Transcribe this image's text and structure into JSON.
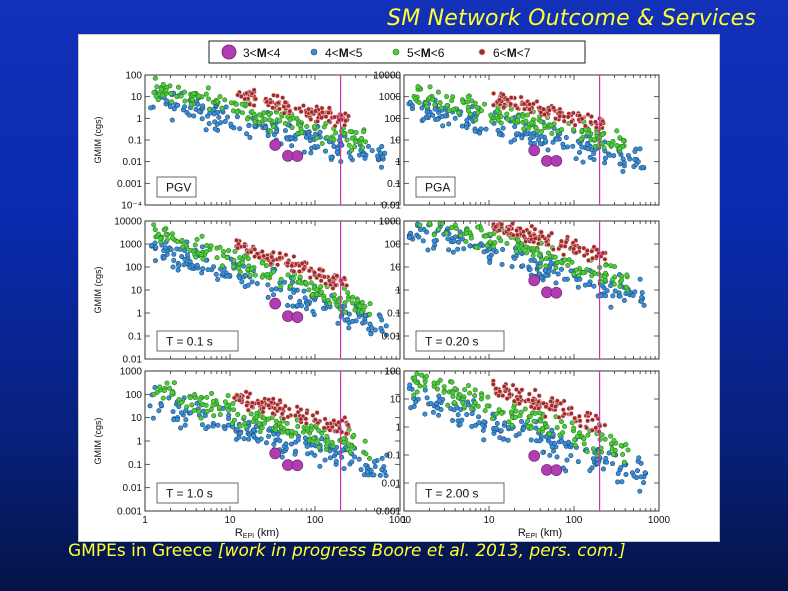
{
  "slide": {
    "title": "SM Network Outcome & Services",
    "footer_prefix": "GMPEs in Greece ",
    "footer_note": "[work in progress Boore et al. 2013, pers. com.]"
  },
  "legend": {
    "items": [
      {
        "prefix": "3<",
        "bold": "M",
        "suffix": "<4",
        "color": "#b23cb2",
        "marker": "large-circle"
      },
      {
        "prefix": "4<",
        "bold": "M",
        "suffix": "<5",
        "color": "#3a8fd8",
        "marker": "circle"
      },
      {
        "prefix": "5<",
        "bold": "M",
        "suffix": "<6",
        "color": "#4ccd3c",
        "marker": "circle"
      },
      {
        "prefix": "6<",
        "bold": "M",
        "suffix": "<7",
        "color": "#9e2a2a",
        "marker": "circle"
      }
    ]
  },
  "x_axis": {
    "label_main": "R",
    "label_sub": "EPI",
    "label_unit": " (km)",
    "tick_labels": [
      "1",
      "10",
      "100",
      "1000"
    ]
  },
  "y_axis_label": "GMIM (cgs)",
  "vertical_line_km": 200,
  "chart_data": [
    {
      "type": "scatter",
      "title": "PGV",
      "x_scale": "log",
      "y_scale": "log",
      "xlim": [
        1,
        1000
      ],
      "ylim": [
        0.0001,
        100
      ],
      "ytick_labels": [
        "100",
        "10",
        "1",
        "0.1",
        "0.01",
        "0.001",
        "10⁻⁴"
      ],
      "trend": {
        "anchor_km": 10,
        "anchor_logy": 0.3,
        "slope": -1.0
      }
    },
    {
      "type": "scatter",
      "title": "PGA",
      "x_scale": "log",
      "y_scale": "log",
      "xlim": [
        1,
        1000
      ],
      "ylim": [
        0.01,
        10000
      ],
      "ytick_labels": [
        "10000",
        "1000",
        "100",
        "10",
        "1",
        "0.1",
        "0.01"
      ],
      "trend": {
        "anchor_km": 10,
        "anchor_logy": 2.0,
        "slope": -0.9
      }
    },
    {
      "type": "scatter",
      "title": "T = 0.1 s",
      "x_scale": "log",
      "y_scale": "log",
      "xlim": [
        1,
        1000
      ],
      "ylim": [
        0.01,
        10000
      ],
      "ytick_labels": [
        "10000",
        "1000",
        "100",
        "10",
        "1",
        "0.1",
        "0.01"
      ],
      "trend": {
        "anchor_km": 10,
        "anchor_logy": 2.1,
        "slope": -1.3
      }
    },
    {
      "type": "scatter",
      "title": "T = 0.20 s",
      "x_scale": "log",
      "y_scale": "log",
      "xlim": [
        1,
        1000
      ],
      "ylim": [
        0.001,
        1000
      ],
      "ytick_labels": [
        "1000",
        "100",
        "10",
        "1",
        "0.1",
        "0.01",
        ""
      ],
      "trend": {
        "anchor_km": 10,
        "anchor_logy": 2.0,
        "slope": -1.1
      }
    },
    {
      "type": "scatter",
      "title": "T = 1.0 s",
      "x_scale": "log",
      "y_scale": "log",
      "xlim": [
        1,
        1000
      ],
      "ylim": [
        0.001,
        1000
      ],
      "ytick_labels": [
        "1000",
        "100",
        "10",
        "1",
        "0.1",
        "0.01",
        "0.001"
      ],
      "trend": {
        "anchor_km": 10,
        "anchor_logy": 1.0,
        "slope": -1.0
      }
    },
    {
      "type": "scatter",
      "title": "T = 2.00 s",
      "x_scale": "log",
      "y_scale": "log",
      "xlim": [
        1,
        1000
      ],
      "ylim": [
        0.001,
        100
      ],
      "ytick_labels": [
        "100",
        "10",
        "1",
        "0.1",
        "0.01",
        "0.001"
      ],
      "trend": {
        "anchor_km": 10,
        "anchor_logy": 0.5,
        "slope": -1.0
      }
    }
  ]
}
